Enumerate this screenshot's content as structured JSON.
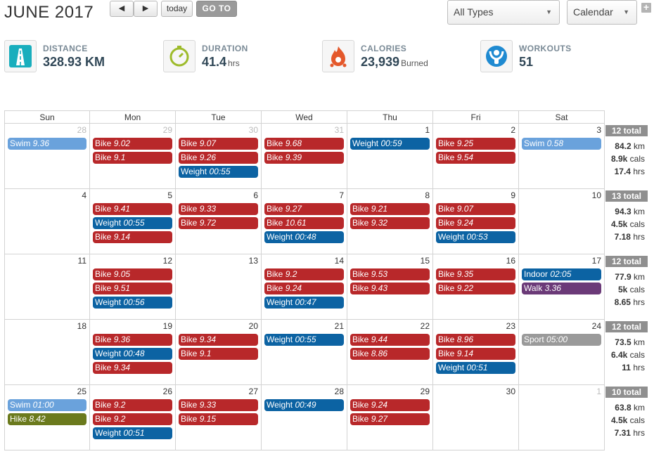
{
  "header": {
    "title": "JUNE 2017",
    "prev_label": "◀",
    "next_label": "▶",
    "today_label": "today",
    "goto_label": "GO TO",
    "types_select": "All Types",
    "view_select": "Calendar",
    "add_label": "+"
  },
  "stats": {
    "distance": {
      "label": "DISTANCE",
      "value": "328.93 KM",
      "unit": ""
    },
    "duration": {
      "label": "DURATION",
      "value": "41.4",
      "unit": "hrs"
    },
    "calories": {
      "label": "CALORIES",
      "value": "23,939",
      "unit": "Burned"
    },
    "workouts": {
      "label": "WORKOUTS",
      "value": "51",
      "unit": ""
    }
  },
  "colors": {
    "bike": "#b8282a",
    "weight": "#0c63a3",
    "swim": "#6aa2dc",
    "indoor": "#0c63a3",
    "walk": "#6b3a78",
    "hike": "#6b7a1d",
    "sport": "#9a9a9a"
  },
  "weekdays": [
    "Sun",
    "Mon",
    "Tue",
    "Wed",
    "Thu",
    "Fri",
    "Sat"
  ],
  "weeks": [
    {
      "days": [
        {
          "num": "28",
          "other": true,
          "events": [
            {
              "type": "swim",
              "name": "Swim",
              "val": "9.36"
            }
          ]
        },
        {
          "num": "29",
          "other": true,
          "events": [
            {
              "type": "bike",
              "name": "Bike",
              "val": "9.02"
            },
            {
              "type": "bike",
              "name": "Bike",
              "val": "9.1"
            }
          ]
        },
        {
          "num": "30",
          "other": true,
          "events": [
            {
              "type": "bike",
              "name": "Bike",
              "val": "9.07"
            },
            {
              "type": "bike",
              "name": "Bike",
              "val": "9.26"
            },
            {
              "type": "weight",
              "name": "Weight",
              "val": "00:55"
            }
          ]
        },
        {
          "num": "31",
          "other": true,
          "events": [
            {
              "type": "bike",
              "name": "Bike",
              "val": "9.68"
            },
            {
              "type": "bike",
              "name": "Bike",
              "val": "9.39"
            }
          ]
        },
        {
          "num": "1",
          "other": false,
          "events": [
            {
              "type": "weight",
              "name": "Weight",
              "val": "00:59"
            }
          ]
        },
        {
          "num": "2",
          "other": false,
          "events": [
            {
              "type": "bike",
              "name": "Bike",
              "val": "9.25"
            },
            {
              "type": "bike",
              "name": "Bike",
              "val": "9.54"
            }
          ]
        },
        {
          "num": "3",
          "other": false,
          "events": [
            {
              "type": "swim",
              "name": "Swim",
              "val": "0.58"
            }
          ]
        }
      ],
      "total": {
        "badge": "12 total",
        "km": "84.2",
        "km_unit": "km",
        "cals": "8.9k",
        "cals_unit": "cals",
        "hrs": "17.4",
        "hrs_unit": "hrs"
      }
    },
    {
      "days": [
        {
          "num": "4",
          "other": false,
          "events": []
        },
        {
          "num": "5",
          "other": false,
          "events": [
            {
              "type": "bike",
              "name": "Bike",
              "val": "9.41"
            },
            {
              "type": "weight",
              "name": "Weight",
              "val": "00:55"
            },
            {
              "type": "bike",
              "name": "Bike",
              "val": "9.14"
            }
          ]
        },
        {
          "num": "6",
          "other": false,
          "events": [
            {
              "type": "bike",
              "name": "Bike",
              "val": "9.33"
            },
            {
              "type": "bike",
              "name": "Bike",
              "val": "9.72"
            }
          ]
        },
        {
          "num": "7",
          "other": false,
          "events": [
            {
              "type": "bike",
              "name": "Bike",
              "val": "9.27"
            },
            {
              "type": "bike",
              "name": "Bike",
              "val": "10.61"
            },
            {
              "type": "weight",
              "name": "Weight",
              "val": "00:48"
            }
          ]
        },
        {
          "num": "8",
          "other": false,
          "events": [
            {
              "type": "bike",
              "name": "Bike",
              "val": "9.21"
            },
            {
              "type": "bike",
              "name": "Bike",
              "val": "9.32"
            }
          ]
        },
        {
          "num": "9",
          "other": false,
          "events": [
            {
              "type": "bike",
              "name": "Bike",
              "val": "9.07"
            },
            {
              "type": "bike",
              "name": "Bike",
              "val": "9.24"
            },
            {
              "type": "weight",
              "name": "Weight",
              "val": "00:53"
            }
          ]
        },
        {
          "num": "10",
          "other": false,
          "events": []
        }
      ],
      "total": {
        "badge": "13 total",
        "km": "94.3",
        "km_unit": "km",
        "cals": "4.5k",
        "cals_unit": "cals",
        "hrs": "7.18",
        "hrs_unit": "hrs"
      }
    },
    {
      "days": [
        {
          "num": "11",
          "other": false,
          "events": []
        },
        {
          "num": "12",
          "other": false,
          "events": [
            {
              "type": "bike",
              "name": "Bike",
              "val": "9.05"
            },
            {
              "type": "bike",
              "name": "Bike",
              "val": "9.51"
            },
            {
              "type": "weight",
              "name": "Weight",
              "val": "00:56"
            }
          ]
        },
        {
          "num": "13",
          "other": false,
          "events": []
        },
        {
          "num": "14",
          "other": false,
          "events": [
            {
              "type": "bike",
              "name": "Bike",
              "val": "9.2"
            },
            {
              "type": "bike",
              "name": "Bike",
              "val": "9.24"
            },
            {
              "type": "weight",
              "name": "Weight",
              "val": "00:47"
            }
          ]
        },
        {
          "num": "15",
          "other": false,
          "events": [
            {
              "type": "bike",
              "name": "Bike",
              "val": "9.53"
            },
            {
              "type": "bike",
              "name": "Bike",
              "val": "9.43"
            }
          ]
        },
        {
          "num": "16",
          "other": false,
          "events": [
            {
              "type": "bike",
              "name": "Bike",
              "val": "9.35"
            },
            {
              "type": "bike",
              "name": "Bike",
              "val": "9.22"
            }
          ]
        },
        {
          "num": "17",
          "other": false,
          "events": [
            {
              "type": "indoor",
              "name": "Indoor",
              "val": "02:05"
            },
            {
              "type": "walk",
              "name": "Walk",
              "val": "3.36"
            }
          ]
        }
      ],
      "total": {
        "badge": "12 total",
        "km": "77.9",
        "km_unit": "km",
        "cals": "5k",
        "cals_unit": "cals",
        "hrs": "8.65",
        "hrs_unit": "hrs"
      }
    },
    {
      "days": [
        {
          "num": "18",
          "other": false,
          "events": []
        },
        {
          "num": "19",
          "other": false,
          "events": [
            {
              "type": "bike",
              "name": "Bike",
              "val": "9.36"
            },
            {
              "type": "weight",
              "name": "Weight",
              "val": "00:48"
            },
            {
              "type": "bike",
              "name": "Bike",
              "val": "9.34"
            }
          ]
        },
        {
          "num": "20",
          "other": false,
          "events": [
            {
              "type": "bike",
              "name": "Bike",
              "val": "9.34"
            },
            {
              "type": "bike",
              "name": "Bike",
              "val": "9.1"
            }
          ]
        },
        {
          "num": "21",
          "other": false,
          "events": [
            {
              "type": "weight",
              "name": "Weight",
              "val": "00:55"
            }
          ]
        },
        {
          "num": "22",
          "other": false,
          "events": [
            {
              "type": "bike",
              "name": "Bike",
              "val": "9.44"
            },
            {
              "type": "bike",
              "name": "Bike",
              "val": "8.86"
            }
          ]
        },
        {
          "num": "23",
          "other": false,
          "events": [
            {
              "type": "bike",
              "name": "Bike",
              "val": "8.96"
            },
            {
              "type": "bike",
              "name": "Bike",
              "val": "9.14"
            },
            {
              "type": "weight",
              "name": "Weight",
              "val": "00:51"
            }
          ]
        },
        {
          "num": "24",
          "other": false,
          "events": [
            {
              "type": "sport",
              "name": "Sport",
              "val": "05:00"
            }
          ]
        }
      ],
      "total": {
        "badge": "12 total",
        "km": "73.5",
        "km_unit": "km",
        "cals": "6.4k",
        "cals_unit": "cals",
        "hrs": "11",
        "hrs_unit": "hrs"
      }
    },
    {
      "days": [
        {
          "num": "25",
          "other": false,
          "events": [
            {
              "type": "swim",
              "name": "Swim",
              "val": "01:00"
            },
            {
              "type": "hike",
              "name": "Hike",
              "val": "8.42"
            }
          ]
        },
        {
          "num": "26",
          "other": false,
          "events": [
            {
              "type": "bike",
              "name": "Bike",
              "val": "9.2"
            },
            {
              "type": "bike",
              "name": "Bike",
              "val": "9.2"
            },
            {
              "type": "weight",
              "name": "Weight",
              "val": "00:51"
            }
          ]
        },
        {
          "num": "27",
          "other": false,
          "events": [
            {
              "type": "bike",
              "name": "Bike",
              "val": "9.33"
            },
            {
              "type": "bike",
              "name": "Bike",
              "val": "9.15"
            }
          ]
        },
        {
          "num": "28",
          "other": false,
          "events": [
            {
              "type": "weight",
              "name": "Weight",
              "val": "00:49"
            }
          ]
        },
        {
          "num": "29",
          "other": false,
          "events": [
            {
              "type": "bike",
              "name": "Bike",
              "val": "9.24"
            },
            {
              "type": "bike",
              "name": "Bike",
              "val": "9.27"
            }
          ]
        },
        {
          "num": "30",
          "other": false,
          "events": []
        },
        {
          "num": "1",
          "other": true,
          "events": []
        }
      ],
      "total": {
        "badge": "10 total",
        "km": "63.8",
        "km_unit": "km",
        "cals": "4.5k",
        "cals_unit": "cals",
        "hrs": "7.31",
        "hrs_unit": "hrs"
      }
    }
  ]
}
